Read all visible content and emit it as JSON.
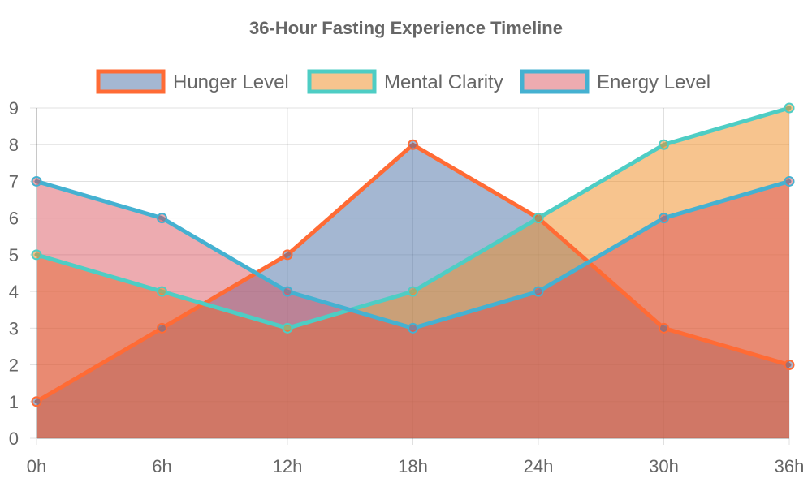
{
  "chart_data": {
    "type": "area",
    "title": "36-Hour Fasting Experience Timeline",
    "categories": [
      "0h",
      "6h",
      "12h",
      "18h",
      "24h",
      "30h",
      "36h"
    ],
    "ylim": [
      0,
      9
    ],
    "yticks": [
      "0",
      "1",
      "2",
      "3",
      "4",
      "5",
      "6",
      "7",
      "8",
      "9"
    ],
    "grid": true,
    "legend_position": "top-center",
    "series": [
      {
        "name": "Hunger Level",
        "values": [
          1,
          3,
          5,
          8,
          6,
          3,
          2
        ],
        "line_color": "#FF6B35",
        "fill_color": "rgba(74,111,165,0.5)"
      },
      {
        "name": "Mental Clarity",
        "values": [
          5,
          4,
          3,
          4,
          6,
          8,
          9
        ],
        "line_color": "#4ECDC4",
        "fill_color": "rgba(240,138,30,0.5)"
      },
      {
        "name": "Energy Level",
        "values": [
          7,
          6,
          4,
          3,
          4,
          6,
          7
        ],
        "line_color": "#45B1D1",
        "fill_color": "rgba(214,69,80,0.45)"
      }
    ]
  }
}
